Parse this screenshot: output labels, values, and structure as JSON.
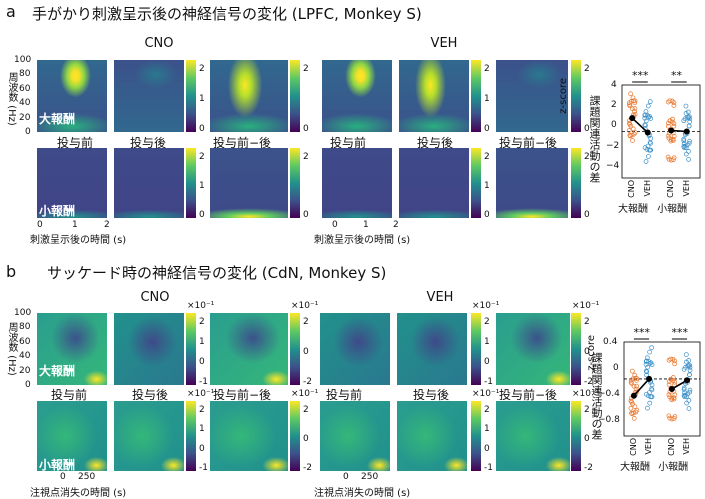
{
  "panel_a": {
    "label": "a",
    "title": "手がかり刺激呈示後の神経信号の変化 (LPFC, Monkey S)",
    "cno": "CNO",
    "veh": "VEH",
    "col_labels": [
      "投与前",
      "投与後",
      "投与前−後"
    ],
    "ylabel": "周波数 (Hz)",
    "yticks": [
      "100",
      "80",
      "60",
      "40",
      "20",
      "0"
    ],
    "xticks": [
      "0",
      "1",
      "2"
    ],
    "xlabel": "刺激呈示後の時間 (s)",
    "large_reward": "大報酬",
    "small_reward": "小報酬",
    "cb_top": [
      "2",
      "1",
      "0"
    ],
    "cb_diff": [
      "2",
      "0"
    ],
    "zscore": "z-score",
    "right": {
      "ylabel": "課題関連活動の差",
      "yticks": [
        "4",
        "2",
        "0",
        "−2",
        "−4"
      ],
      "xticks": [
        "CNO",
        "VEH",
        "CNO",
        "VEH"
      ],
      "groups": [
        "大報酬",
        "小報酬"
      ],
      "sig": [
        "***",
        "**"
      ]
    }
  },
  "panel_b": {
    "label": "b",
    "title": "サッケード時の神経信号の変化 (CdN, Monkey S)",
    "cno": "CNO",
    "veh": "VEH",
    "col_labels": [
      "投与前",
      "投与後",
      "投与前−後"
    ],
    "ylabel": "周波数 (Hz)",
    "yticks": [
      "100",
      "80",
      "60",
      "40",
      "20",
      "0"
    ],
    "xticks": [
      "0",
      "250"
    ],
    "xlabel": "注視点消失の時間 (s)",
    "large_reward": "大報酬",
    "small_reward": "小報酬",
    "cb_exp": "×10⁻¹",
    "cb_top": [
      "2",
      "1",
      "0",
      "-1"
    ],
    "cb_diff": [
      "2",
      "0",
      "-2"
    ],
    "zscore": "z-score",
    "right": {
      "ylabel": "課題関連活動の差",
      "yticks": [
        "0.4",
        "0",
        "−0.4",
        "−0.8"
      ],
      "xticks": [
        "CNO",
        "VEH",
        "CNO",
        "VEH"
      ],
      "groups": [
        "大報酬",
        "小報酬"
      ],
      "sig": [
        "***",
        "***"
      ]
    }
  },
  "chart_data": [
    {
      "type": "scatter",
      "panel": "a",
      "ylabel": "課題関連活動の差",
      "ylim": [
        -4.5,
        4.5
      ],
      "categories": [
        "大報酬 CNO",
        "大報酬 VEH",
        "小報酬 CNO",
        "小報酬 VEH"
      ],
      "means": [
        1.3,
        -0.1,
        0.1,
        0.0
      ],
      "colors": [
        "#e8742a",
        "#3a8fc9",
        "#e8742a",
        "#3a8fc9"
      ],
      "significance": [
        "***",
        "**"
      ]
    },
    {
      "type": "scatter",
      "panel": "b",
      "ylabel": "課題関連活動の差",
      "ylim": [
        -0.85,
        0.55
      ],
      "categories": [
        "大報酬 CNO",
        "大報酬 VEH",
        "小報酬 CNO",
        "小報酬 VEH"
      ],
      "means": [
        -0.25,
        0.0,
        -0.15,
        -0.02
      ],
      "colors": [
        "#e8742a",
        "#3a8fc9",
        "#e8742a",
        "#3a8fc9"
      ],
      "significance": [
        "***",
        "***"
      ]
    }
  ]
}
